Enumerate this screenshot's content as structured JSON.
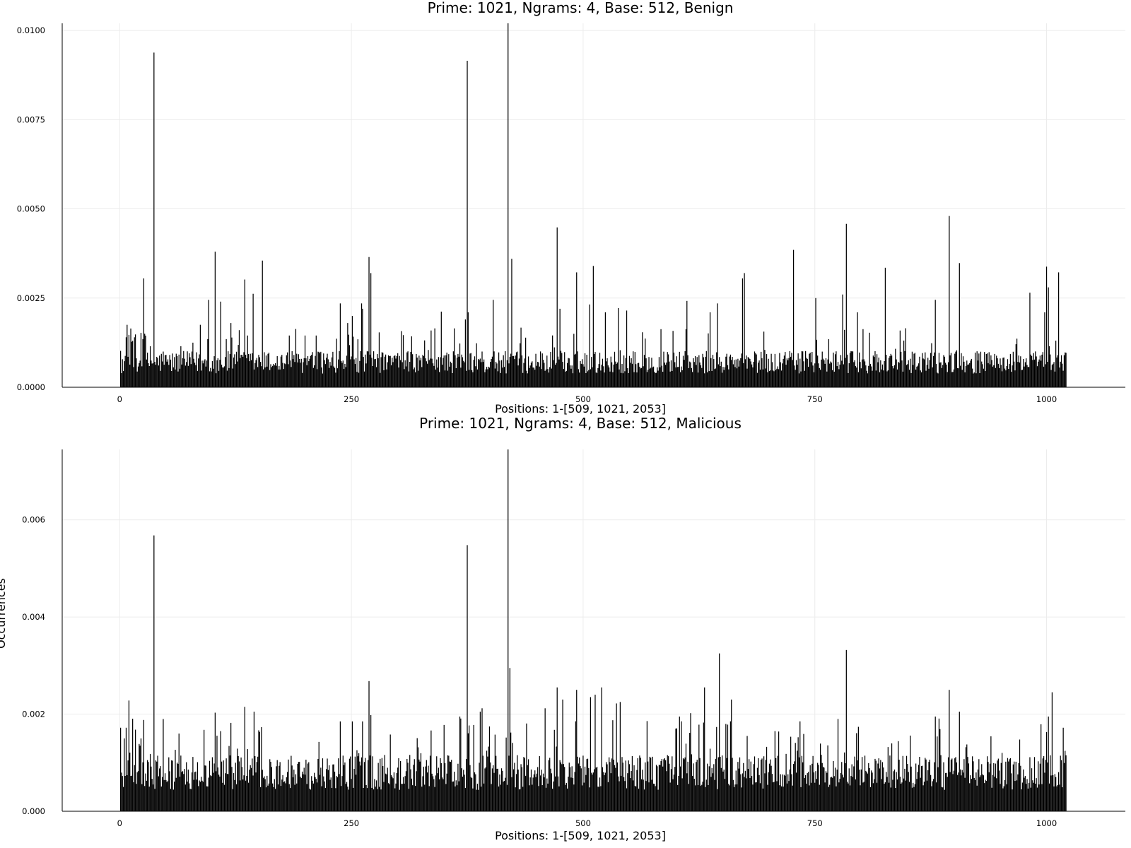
{
  "colors": {
    "bar": "#000000",
    "grid": "#ececec",
    "background": "#ffffff"
  },
  "chart_data": [
    {
      "type": "bar",
      "title": "Prime: 1021, Ngrams: 4, Base: 512, Benign",
      "xlabel": "Positions: 1-[509, 1021, 2053]",
      "ylabel": "",
      "xlim": [
        -62,
        1085
      ],
      "ylim": [
        0,
        0.0102
      ],
      "xticks": [
        0,
        250,
        500,
        750,
        1000
      ],
      "xtick_labels": [
        "0",
        "250",
        "500",
        "750",
        "1000"
      ],
      "yticks": [
        0,
        0.0025,
        0.005,
        0.0075,
        0.01
      ],
      "ytick_labels": [
        "0.0000",
        "0.0025",
        "0.0050",
        "0.0075",
        "0.0100"
      ],
      "grid": true,
      "legend": "none",
      "n_positions": 1021,
      "background_level": 0.0007,
      "peaks": [
        {
          "x": 1,
          "y": 0.00102
        },
        {
          "x": 7,
          "y": 0.0014
        },
        {
          "x": 8,
          "y": 0.00175
        },
        {
          "x": 14,
          "y": 0.0013
        },
        {
          "x": 16,
          "y": 0.0014
        },
        {
          "x": 17,
          "y": 0.00148
        },
        {
          "x": 25,
          "y": 0.00135
        },
        {
          "x": 26,
          "y": 0.00305
        },
        {
          "x": 27,
          "y": 0.0015
        },
        {
          "x": 33,
          "y": 0.00115
        },
        {
          "x": 37,
          "y": 0.00938
        },
        {
          "x": 47,
          "y": 0.001
        },
        {
          "x": 66,
          "y": 0.00115
        },
        {
          "x": 79,
          "y": 0.00125
        },
        {
          "x": 87,
          "y": 0.00175
        },
        {
          "x": 95,
          "y": 0.00135
        },
        {
          "x": 96,
          "y": 0.00245
        },
        {
          "x": 103,
          "y": 0.0038
        },
        {
          "x": 109,
          "y": 0.0024
        },
        {
          "x": 115,
          "y": 0.00135
        },
        {
          "x": 120,
          "y": 0.0018
        },
        {
          "x": 129,
          "y": 0.0016
        },
        {
          "x": 135,
          "y": 0.00302
        },
        {
          "x": 138,
          "y": 0.00145
        },
        {
          "x": 144,
          "y": 0.00262
        },
        {
          "x": 154,
          "y": 0.00355
        },
        {
          "x": 183,
          "y": 0.00145
        },
        {
          "x": 200,
          "y": 0.00145
        },
        {
          "x": 212,
          "y": 0.00145
        },
        {
          "x": 238,
          "y": 0.00235
        },
        {
          "x": 246,
          "y": 0.0018
        },
        {
          "x": 251,
          "y": 0.002
        },
        {
          "x": 261,
          "y": 0.00235
        },
        {
          "x": 262,
          "y": 0.0022
        },
        {
          "x": 269,
          "y": 0.00365
        },
        {
          "x": 271,
          "y": 0.0032
        },
        {
          "x": 340,
          "y": 0.00165
        },
        {
          "x": 347,
          "y": 0.00212
        },
        {
          "x": 361,
          "y": 0.00165
        },
        {
          "x": 373,
          "y": 0.0019
        },
        {
          "x": 375,
          "y": 0.00915
        },
        {
          "x": 376,
          "y": 0.0021
        },
        {
          "x": 403,
          "y": 0.00245
        },
        {
          "x": 419,
          "y": 0.0102
        },
        {
          "x": 423,
          "y": 0.0036
        },
        {
          "x": 472,
          "y": 0.00448
        },
        {
          "x": 475,
          "y": 0.0022
        },
        {
          "x": 493,
          "y": 0.00322
        },
        {
          "x": 507,
          "y": 0.00232
        },
        {
          "x": 511,
          "y": 0.0034
        },
        {
          "x": 524,
          "y": 0.0021
        },
        {
          "x": 538,
          "y": 0.00222
        },
        {
          "x": 547,
          "y": 0.00215
        },
        {
          "x": 597,
          "y": 0.00158
        },
        {
          "x": 612,
          "y": 0.00242
        },
        {
          "x": 637,
          "y": 0.0021
        },
        {
          "x": 645,
          "y": 0.00235
        },
        {
          "x": 672,
          "y": 0.00305
        },
        {
          "x": 674,
          "y": 0.0032
        },
        {
          "x": 727,
          "y": 0.00385
        },
        {
          "x": 751,
          "y": 0.0025
        },
        {
          "x": 780,
          "y": 0.0026
        },
        {
          "x": 784,
          "y": 0.00458
        },
        {
          "x": 796,
          "y": 0.0021
        },
        {
          "x": 826,
          "y": 0.00335
        },
        {
          "x": 880,
          "y": 0.00245
        },
        {
          "x": 895,
          "y": 0.0048
        },
        {
          "x": 906,
          "y": 0.00348
        },
        {
          "x": 982,
          "y": 0.00265
        },
        {
          "x": 998,
          "y": 0.0021
        },
        {
          "x": 1000,
          "y": 0.00338
        },
        {
          "x": 1002,
          "y": 0.0028
        },
        {
          "x": 1013,
          "y": 0.00322
        }
      ]
    },
    {
      "type": "bar",
      "title": "Prime: 1021, Ngrams: 4, Base: 512, Malicious",
      "xlabel": "Positions: 1-[509, 1021, 2053]",
      "ylabel": "Occurrences",
      "xlim": [
        -62,
        1085
      ],
      "ylim": [
        0,
        0.00745
      ],
      "xticks": [
        0,
        250,
        500,
        750,
        1000
      ],
      "xtick_labels": [
        "0",
        "250",
        "500",
        "750",
        "1000"
      ],
      "yticks": [
        0,
        0.002,
        0.004,
        0.006
      ],
      "ytick_labels": [
        "0.000",
        "0.002",
        "0.004",
        "0.006"
      ],
      "grid": true,
      "legend": "none",
      "n_positions": 1021,
      "background_level": 0.0008,
      "peaks": [
        {
          "x": 1,
          "y": 0.00172
        },
        {
          "x": 5,
          "y": 0.0015
        },
        {
          "x": 7,
          "y": 0.00172
        },
        {
          "x": 10,
          "y": 0.00228
        },
        {
          "x": 17,
          "y": 0.00168
        },
        {
          "x": 22,
          "y": 0.00135
        },
        {
          "x": 26,
          "y": 0.00188
        },
        {
          "x": 33,
          "y": 0.00118
        },
        {
          "x": 37,
          "y": 0.00568
        },
        {
          "x": 103,
          "y": 0.00203
        },
        {
          "x": 109,
          "y": 0.00165
        },
        {
          "x": 120,
          "y": 0.00182
        },
        {
          "x": 135,
          "y": 0.00215
        },
        {
          "x": 145,
          "y": 0.00205
        },
        {
          "x": 238,
          "y": 0.00185
        },
        {
          "x": 251,
          "y": 0.00185
        },
        {
          "x": 262,
          "y": 0.00185
        },
        {
          "x": 269,
          "y": 0.00268
        },
        {
          "x": 271,
          "y": 0.00198
        },
        {
          "x": 367,
          "y": 0.00195
        },
        {
          "x": 375,
          "y": 0.00548
        },
        {
          "x": 389,
          "y": 0.00205
        },
        {
          "x": 391,
          "y": 0.00212
        },
        {
          "x": 419,
          "y": 0.00745
        },
        {
          "x": 421,
          "y": 0.00295
        },
        {
          "x": 459,
          "y": 0.00212
        },
        {
          "x": 472,
          "y": 0.00255
        },
        {
          "x": 478,
          "y": 0.0023
        },
        {
          "x": 493,
          "y": 0.0025
        },
        {
          "x": 508,
          "y": 0.00235
        },
        {
          "x": 513,
          "y": 0.0024
        },
        {
          "x": 520,
          "y": 0.00255
        },
        {
          "x": 536,
          "y": 0.00222
        },
        {
          "x": 540,
          "y": 0.00225
        },
        {
          "x": 604,
          "y": 0.00195
        },
        {
          "x": 616,
          "y": 0.00202
        },
        {
          "x": 631,
          "y": 0.00255
        },
        {
          "x": 647,
          "y": 0.00325
        },
        {
          "x": 660,
          "y": 0.0023
        },
        {
          "x": 707,
          "y": 0.00165
        },
        {
          "x": 775,
          "y": 0.0019
        },
        {
          "x": 784,
          "y": 0.00332
        },
        {
          "x": 880,
          "y": 0.00195
        },
        {
          "x": 895,
          "y": 0.0025
        },
        {
          "x": 906,
          "y": 0.00205
        },
        {
          "x": 1002,
          "y": 0.00195
        },
        {
          "x": 1006,
          "y": 0.00245
        },
        {
          "x": 1018,
          "y": 0.00172
        }
      ]
    }
  ]
}
